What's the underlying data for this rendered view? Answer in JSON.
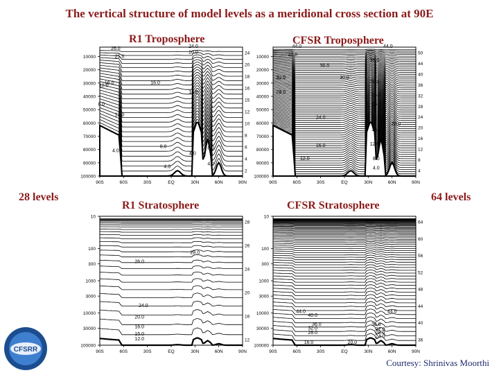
{
  "title": "The vertical structure of model levels as a meridional cross section at 90E",
  "labels": {
    "left_levels": "28 levels",
    "right_levels": "64 levels",
    "credit": "Courtesy: Shrinivas Moorthi",
    "logo_text": "CFSRR"
  },
  "colors": {
    "accent": "#8b1a1a",
    "credit": "#1f2a6b"
  },
  "chart_data": [
    {
      "id": "r1-trop",
      "type": "line",
      "title": "R1 Troposphere",
      "x_ticks": [
        "90S",
        "60S",
        "30S",
        "EQ",
        "30N",
        "60N",
        "90N"
      ],
      "y_ticks": [
        "10000",
        "20000",
        "30000",
        "40000",
        "50000",
        "60000",
        "70000",
        "80000",
        "90000",
        "100000"
      ],
      "y_scale": "linear",
      "ylim": [
        3000,
        100000
      ],
      "xlim": [
        -90,
        90
      ],
      "right_ticks": [
        "24",
        "20",
        "18",
        "16",
        "15",
        "12",
        "10",
        "8",
        "6",
        "4",
        "2"
      ],
      "levels": 28,
      "contour_labels": [
        {
          "text": "26.0",
          "lat": -70,
          "p": 5000
        },
        {
          "text": "25.0",
          "lat": -65,
          "p": 11000
        },
        {
          "text": "16.0",
          "lat": -20,
          "p": 31000
        },
        {
          "text": "12.0",
          "lat": -85,
          "p": 33000
        },
        {
          "text": "16.0",
          "lat": -78,
          "p": 31000
        },
        {
          "text": "8.0",
          "lat": -88,
          "p": 47000
        },
        {
          "text": "12.0",
          "lat": -65,
          "p": 55000
        },
        {
          "text": "4.0",
          "lat": -70,
          "p": 82000
        },
        {
          "text": "8.0",
          "lat": -10,
          "p": 79000
        },
        {
          "text": "4.0",
          "lat": -5,
          "p": 94000
        },
        {
          "text": "24.0",
          "lat": 28,
          "p": 3500
        },
        {
          "text": "20.0",
          "lat": 28,
          "p": 8000
        },
        {
          "text": "16.0",
          "lat": 28,
          "p": 38000
        },
        {
          "text": "4.0",
          "lat": 27,
          "p": 84000
        },
        {
          "text": "8.0",
          "lat": 50,
          "p": 80000
        },
        {
          "text": "4.0",
          "lat": 50,
          "p": 92000
        }
      ]
    },
    {
      "id": "cfsr-trop",
      "type": "line",
      "title": "CFSR Troposphere",
      "x_ticks": [
        "90S",
        "60S",
        "30S",
        "EQ",
        "30N",
        "60N",
        "90N"
      ],
      "y_ticks": [
        "10000",
        "20000",
        "30000",
        "40000",
        "50000",
        "60000",
        "70000",
        "80000",
        "90000",
        "100000"
      ],
      "y_scale": "linear",
      "ylim": [
        3000,
        100000
      ],
      "xlim": [
        -90,
        90
      ],
      "right_ticks": [
        "50",
        "44",
        "40",
        "36",
        "32",
        "28",
        "24",
        "20",
        "16",
        "12",
        "8",
        "4"
      ],
      "levels": 64,
      "contour_labels": [
        {
          "text": "44.0",
          "lat": -60,
          "p": 3500
        },
        {
          "text": "40.0",
          "lat": -65,
          "p": 10000
        },
        {
          "text": "36.0",
          "lat": -25,
          "p": 18000
        },
        {
          "text": "32.0",
          "lat": -80,
          "p": 27000
        },
        {
          "text": "28.0",
          "lat": -80,
          "p": 38000
        },
        {
          "text": "24.0",
          "lat": -30,
          "p": 57000
        },
        {
          "text": "16.0",
          "lat": -30,
          "p": 78000
        },
        {
          "text": "12.0",
          "lat": -50,
          "p": 88000
        },
        {
          "text": "44.0",
          "lat": 55,
          "p": 3500
        },
        {
          "text": "36.0",
          "lat": 38,
          "p": 14000
        },
        {
          "text": "30.0",
          "lat": 0,
          "p": 27000
        },
        {
          "text": "28.0",
          "lat": 38,
          "p": 30000
        },
        {
          "text": "24.0",
          "lat": 40,
          "p": 40000
        },
        {
          "text": "20.0",
          "lat": 40,
          "p": 47000
        },
        {
          "text": "16.0",
          "lat": 40,
          "p": 66000
        },
        {
          "text": "12.0",
          "lat": 38,
          "p": 77000
        },
        {
          "text": "8.0",
          "lat": 40,
          "p": 88000
        },
        {
          "text": "4.0",
          "lat": 40,
          "p": 95000
        },
        {
          "text": "20.0",
          "lat": 65,
          "p": 62000
        }
      ]
    },
    {
      "id": "r1-strat",
      "type": "line",
      "title": "R1 Stratosphere",
      "x_ticks": [
        "90S",
        "60S",
        "30S",
        "EQ",
        "30N",
        "60N",
        "90N"
      ],
      "y_ticks": [
        "10",
        "100",
        "300",
        "1000",
        "3000",
        "10000",
        "30000",
        "100000"
      ],
      "y_scale": "log",
      "ylim": [
        10,
        100000
      ],
      "xlim": [
        -90,
        90
      ],
      "right_ticks": [
        "28",
        "26",
        "24",
        "20",
        "16",
        "12"
      ],
      "levels": 28,
      "contour_labels": [
        {
          "text": "26.0",
          "lat": -40,
          "p": 280
        },
        {
          "text": "24.0",
          "lat": -35,
          "p": 6500
        },
        {
          "text": "20.0",
          "lat": -40,
          "p": 15000
        },
        {
          "text": "16.0",
          "lat": -40,
          "p": 30000
        },
        {
          "text": "15.0",
          "lat": -40,
          "p": 50000
        },
        {
          "text": "12.0",
          "lat": -40,
          "p": 70000
        },
        {
          "text": "28.0",
          "lat": 30,
          "p": 150
        }
      ]
    },
    {
      "id": "cfsr-strat",
      "type": "line",
      "title": "CFSR Stratosphere",
      "x_ticks": [
        "90S",
        "60S",
        "30S",
        "EQ",
        "30N",
        "60N",
        "90N"
      ],
      "y_ticks": [
        "10",
        "100",
        "300",
        "1000",
        "3000",
        "10000",
        "30000",
        "100000"
      ],
      "y_scale": "log",
      "ylim": [
        10,
        100000
      ],
      "xlim": [
        -90,
        90
      ],
      "right_ticks": [
        "64",
        "60",
        "56",
        "52",
        "48",
        "44",
        "40",
        "36"
      ],
      "levels": 64,
      "contour_labels": [
        {
          "text": "44.0",
          "lat": -55,
          "p": 10000
        },
        {
          "text": "40.0",
          "lat": -40,
          "p": 13000
        },
        {
          "text": "36.0",
          "lat": -35,
          "p": 25000
        },
        {
          "text": "32.0",
          "lat": -40,
          "p": 33000
        },
        {
          "text": "28.0",
          "lat": -40,
          "p": 45000
        },
        {
          "text": "16.0",
          "lat": -45,
          "p": 90000
        },
        {
          "text": "44.0",
          "lat": 60,
          "p": 10000
        },
        {
          "text": "36.0",
          "lat": 40,
          "p": 25000
        },
        {
          "text": "32.0",
          "lat": 45,
          "p": 35000
        },
        {
          "text": "28.0",
          "lat": 45,
          "p": 45000
        },
        {
          "text": "24.0",
          "lat": 45,
          "p": 60000
        },
        {
          "text": "20.0",
          "lat": 10,
          "p": 90000
        }
      ]
    }
  ]
}
